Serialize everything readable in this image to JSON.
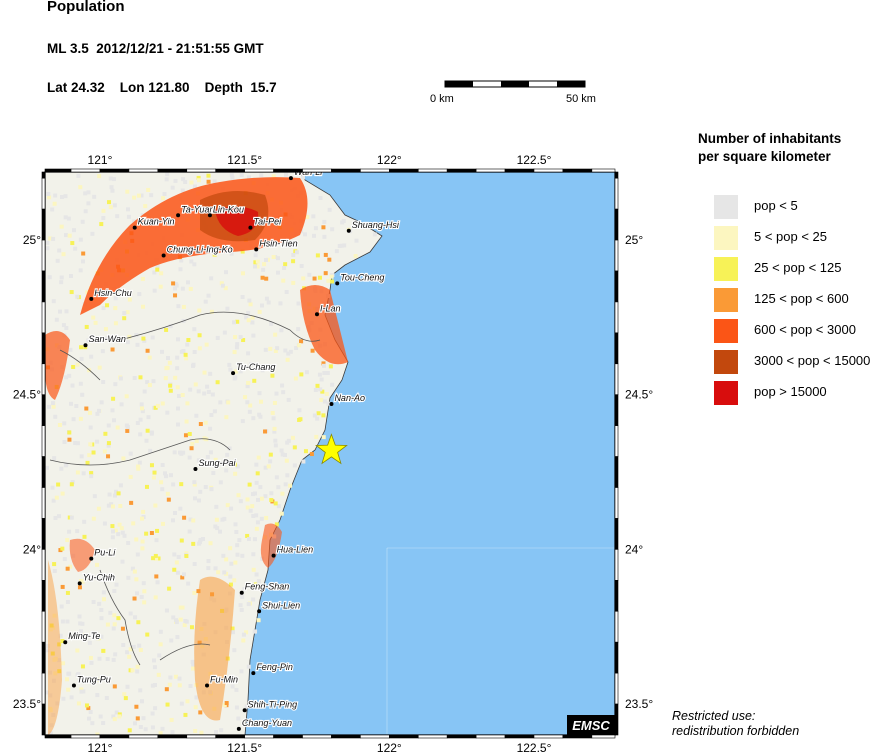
{
  "header": {
    "title": "Population",
    "event_line": "ML 3.5  2012/12/21 - 21:51:55 GMT",
    "location_line": "Lat 24.32    Lon 121.80    Depth  15.7"
  },
  "scale_bar": {
    "start_label": "0 km",
    "end_label": "50 km"
  },
  "map": {
    "lon_ticks": [
      "121°",
      "121.5°",
      "122°",
      "122.5°"
    ],
    "lat_ticks": [
      "25°",
      "24.5°",
      "24°",
      "23.5°"
    ],
    "epicenter": {
      "lat": 24.32,
      "lon": 121.8,
      "color": "#ffff00"
    },
    "sea_color": "#87c5f5",
    "cities": [
      {
        "name": "Wan-Li",
        "lon": 121.66,
        "lat": 25.2
      },
      {
        "name": "Ta-Yuan",
        "lon": 121.27,
        "lat": 25.08
      },
      {
        "name": "Lin-Kou",
        "lon": 121.38,
        "lat": 25.08
      },
      {
        "name": "Tai-Pei",
        "lon": 121.52,
        "lat": 25.04
      },
      {
        "name": "Shuang-Hsi",
        "lon": 121.86,
        "lat": 25.03
      },
      {
        "name": "Kuan-Yin",
        "lon": 121.12,
        "lat": 25.04
      },
      {
        "name": "Hsin-Tien",
        "lon": 121.54,
        "lat": 24.97
      },
      {
        "name": "Chung-Li-Ing-Ko",
        "lon": 121.22,
        "lat": 24.95
      },
      {
        "name": "Tou-Cheng",
        "lon": 121.82,
        "lat": 24.86
      },
      {
        "name": "Hsin-Chu",
        "lon": 120.97,
        "lat": 24.81
      },
      {
        "name": "I-Lan",
        "lon": 121.75,
        "lat": 24.76
      },
      {
        "name": "San-Wan",
        "lon": 120.95,
        "lat": 24.66
      },
      {
        "name": "Tu-Chang",
        "lon": 121.46,
        "lat": 24.57
      },
      {
        "name": "Nan-Ao",
        "lon": 121.8,
        "lat": 24.47
      },
      {
        "name": "Sung-Pai",
        "lon": 121.33,
        "lat": 24.26
      },
      {
        "name": "Hua-Lien",
        "lon": 121.6,
        "lat": 23.98
      },
      {
        "name": "Pu-Li",
        "lon": 120.97,
        "lat": 23.97
      },
      {
        "name": "Yu-Chih",
        "lon": 120.93,
        "lat": 23.89
      },
      {
        "name": "Feng-Shan",
        "lon": 121.49,
        "lat": 23.86
      },
      {
        "name": "Shui-Lien",
        "lon": 121.55,
        "lat": 23.8
      },
      {
        "name": "Ming-Te",
        "lon": 120.88,
        "lat": 23.7
      },
      {
        "name": "Feng-Pin",
        "lon": 121.53,
        "lat": 23.6
      },
      {
        "name": "Tung-Pu",
        "lon": 120.91,
        "lat": 23.56
      },
      {
        "name": "Fu-Min",
        "lon": 121.37,
        "lat": 23.56
      },
      {
        "name": "Shih-Ti-Ping",
        "lon": 121.5,
        "lat": 23.48
      },
      {
        "name": "Chang-Yuan",
        "lon": 121.48,
        "lat": 23.42
      }
    ],
    "watermark": "EMSC"
  },
  "legend": {
    "title_line1": "Number of inhabitants",
    "title_line2": "per square kilometer",
    "items": [
      {
        "label": "pop < 5",
        "color": "#e6e6e6"
      },
      {
        "label": "5 < pop < 25",
        "color": "#fcf6c0"
      },
      {
        "label": "25 < pop < 125",
        "color": "#f7f257"
      },
      {
        "label": "125 < pop < 600",
        "color": "#fa9a36"
      },
      {
        "label": "600 < pop < 3000",
        "color": "#fb5516"
      },
      {
        "label": "3000 < pop < 15000",
        "color": "#c2480d"
      },
      {
        "label": "pop > 15000",
        "color": "#d80d0d"
      }
    ]
  },
  "footer": {
    "line1": "Restricted use:",
    "line2": "redistribution forbidden"
  }
}
